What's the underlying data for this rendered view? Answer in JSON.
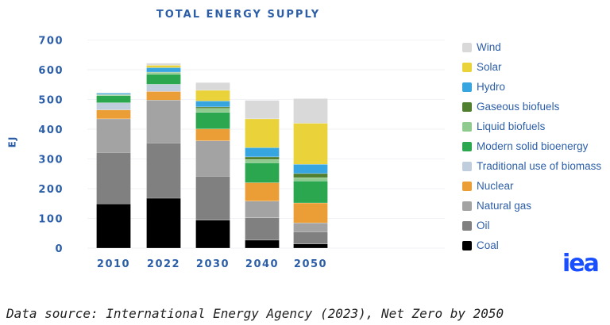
{
  "chart_data": {
    "type": "bar",
    "stacked": true,
    "title": "TOTAL ENERGY SUPPLY",
    "ylabel": "EJ",
    "xlabel": "",
    "ylim": [
      0,
      700
    ],
    "yticks": [
      0,
      100,
      200,
      300,
      400,
      500,
      600,
      700
    ],
    "grid": true,
    "legend_placement": "right",
    "categories": [
      "2010",
      "2022",
      "2030",
      "2040",
      "2050"
    ],
    "series": [
      {
        "name": "Coal",
        "color": "#000000",
        "values": [
          149,
          168,
          94,
          27,
          14
        ]
      },
      {
        "name": "Oil",
        "color": "#7f807f",
        "values": [
          173,
          186,
          148,
          75,
          41
        ]
      },
      {
        "name": "Natural gas",
        "color": "#a3a3a3",
        "values": [
          113,
          144,
          119,
          56,
          30
        ]
      },
      {
        "name": "Nuclear",
        "color": "#eb9e35",
        "values": [
          30,
          29,
          40,
          62,
          67
        ]
      },
      {
        "name": "Traditional use of biomass",
        "color": "#bfcddd",
        "values": [
          24,
          24,
          0,
          0,
          0
        ]
      },
      {
        "name": "Modern solid bioenergy",
        "color": "#2ba84f",
        "values": [
          24,
          34,
          56,
          67,
          74
        ]
      },
      {
        "name": "Liquid biofuels",
        "color": "#8fcb8f",
        "values": [
          3,
          6,
          13,
          11,
          11
        ]
      },
      {
        "name": "Gaseous biofuels",
        "color": "#4f7f2f",
        "values": [
          1,
          1,
          5,
          9,
          14
        ]
      },
      {
        "name": "Hydro",
        "color": "#37a6e0",
        "values": [
          5,
          15,
          20,
          31,
          31
        ]
      },
      {
        "name": "Solar",
        "color": "#ead33a",
        "values": [
          0.5,
          8,
          36,
          97,
          138
        ]
      },
      {
        "name": "Wind",
        "color": "#d9d9d9",
        "values": [
          0.5,
          7,
          26,
          62,
          83
        ]
      }
    ]
  },
  "logo": "iea",
  "source": "Data source: International Energy Agency (2023), Net Zero by 2050"
}
